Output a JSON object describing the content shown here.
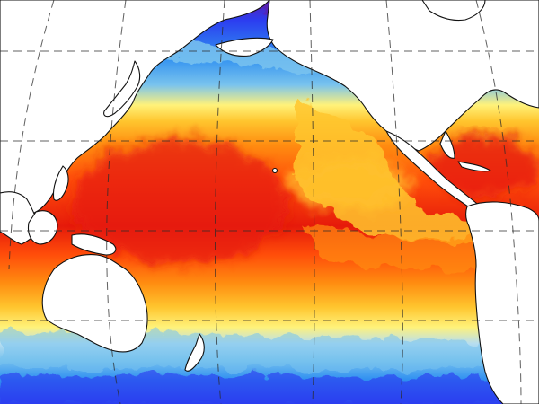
{
  "map": {
    "kind": "sea-surface-temperature",
    "projection": "pacific-centered",
    "colors": {
      "land": "#ffffff",
      "coastline": "#111111",
      "graticule": "#2b2b2b",
      "ocean_scale": [
        "#5a1fb0",
        "#2c3df0",
        "#2f8ff0",
        "#79c3ee",
        "#b7def0",
        "#fff27a",
        "#ffc52e",
        "#ff8c10",
        "#ff4d0a",
        "#e61a0a"
      ]
    },
    "regions": {
      "polar": "#2c3df0",
      "subpolar": "#79c3ee",
      "temperate": "#fff27a",
      "subtropical": "#ff8c10",
      "tropical_warm_pool": "#e61a0a"
    }
  }
}
